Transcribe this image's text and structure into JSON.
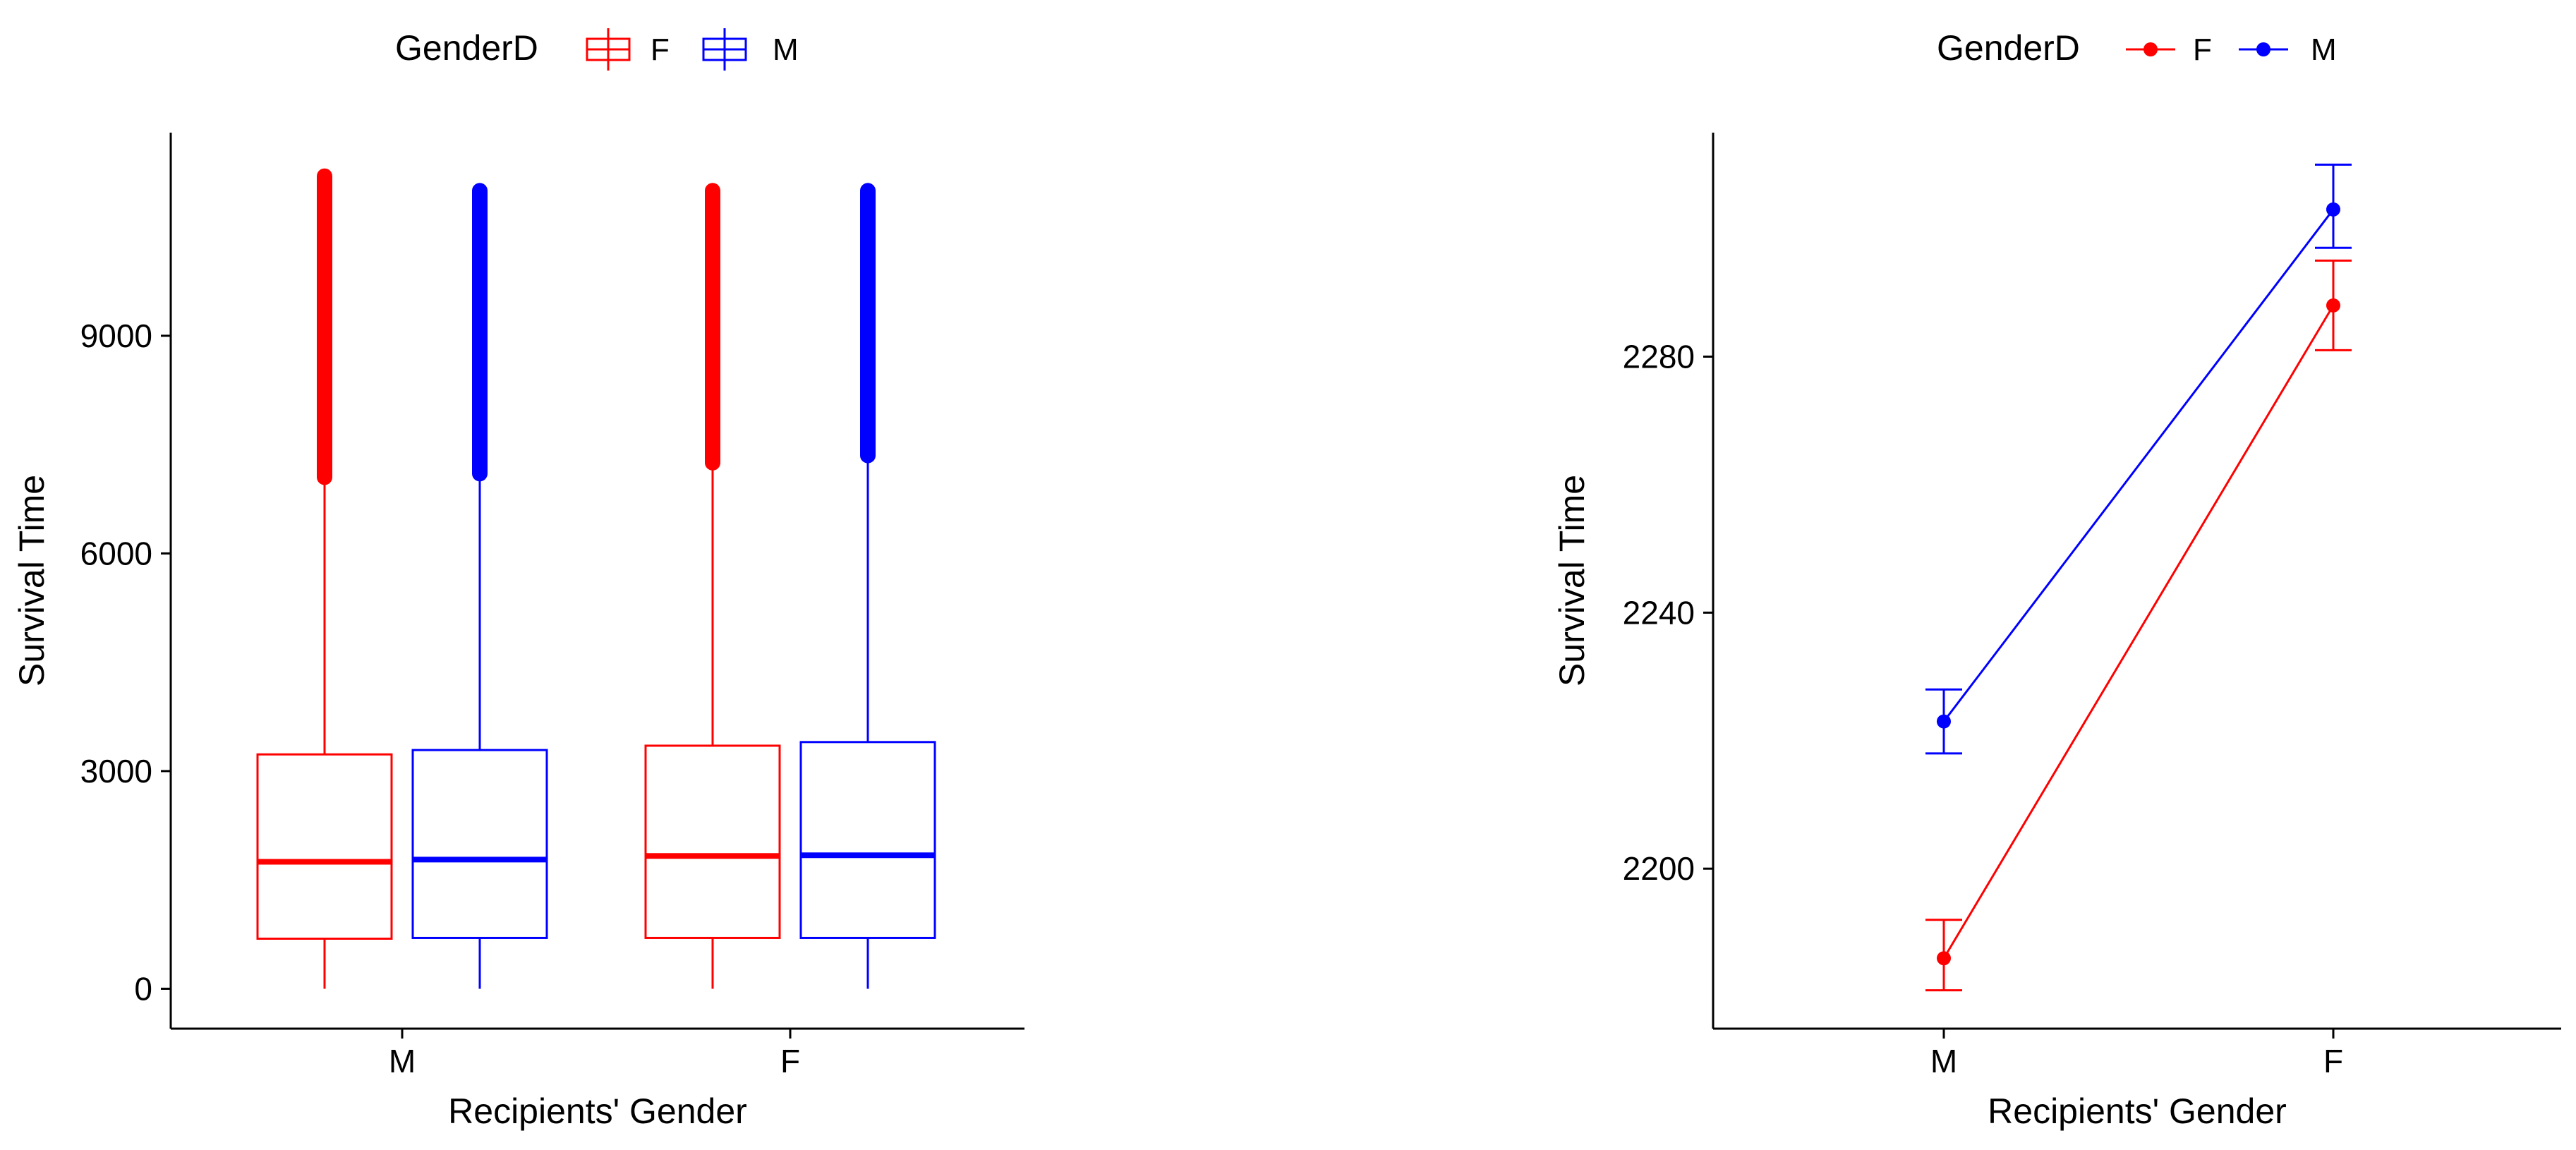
{
  "legend": {
    "title": "GenderD",
    "groups": [
      "F",
      "M"
    ]
  },
  "colors": {
    "F": "#ff0000",
    "M": "#0000ff"
  },
  "chart_data": [
    {
      "type": "boxplot",
      "xlabel": "Recipients' Gender",
      "ylabel": "Survival Time",
      "categories": [
        "M",
        "F"
      ],
      "yticks": [
        0,
        3000,
        6000,
        9000
      ],
      "ylim": [
        -550,
        11800
      ],
      "legend_position": "top",
      "grid": false,
      "boxes": [
        {
          "category": "M",
          "group": "F",
          "whisker_low": 0,
          "q1": 690,
          "median": 1750,
          "q3": 3230,
          "whisker_high": 7050,
          "outlier_low": 7050,
          "outlier_high": 11200
        },
        {
          "category": "M",
          "group": "M",
          "whisker_low": 0,
          "q1": 700,
          "median": 1780,
          "q3": 3290,
          "whisker_high": 7100,
          "outlier_low": 7100,
          "outlier_high": 11000
        },
        {
          "category": "F",
          "group": "F",
          "whisker_low": 0,
          "q1": 700,
          "median": 1830,
          "q3": 3350,
          "whisker_high": 7250,
          "outlier_low": 7250,
          "outlier_high": 11000
        },
        {
          "category": "F",
          "group": "M",
          "whisker_low": 0,
          "q1": 700,
          "median": 1840,
          "q3": 3400,
          "whisker_high": 7350,
          "outlier_low": 7350,
          "outlier_high": 11000
        }
      ]
    },
    {
      "type": "line",
      "xlabel": "Recipients' Gender",
      "ylabel": "Survival Time",
      "categories": [
        "M",
        "F"
      ],
      "yticks": [
        2200,
        2240,
        2280
      ],
      "ylim": [
        2175,
        2315
      ],
      "legend_position": "top",
      "grid": false,
      "series": [
        {
          "name": "F",
          "values": [
            2186,
            2288
          ],
          "err_low": [
            2181,
            2281
          ],
          "err_high": [
            2192,
            2295
          ]
        },
        {
          "name": "M",
          "values": [
            2223,
            2303
          ],
          "err_low": [
            2218,
            2297
          ],
          "err_high": [
            2228,
            2310
          ]
        }
      ]
    }
  ]
}
